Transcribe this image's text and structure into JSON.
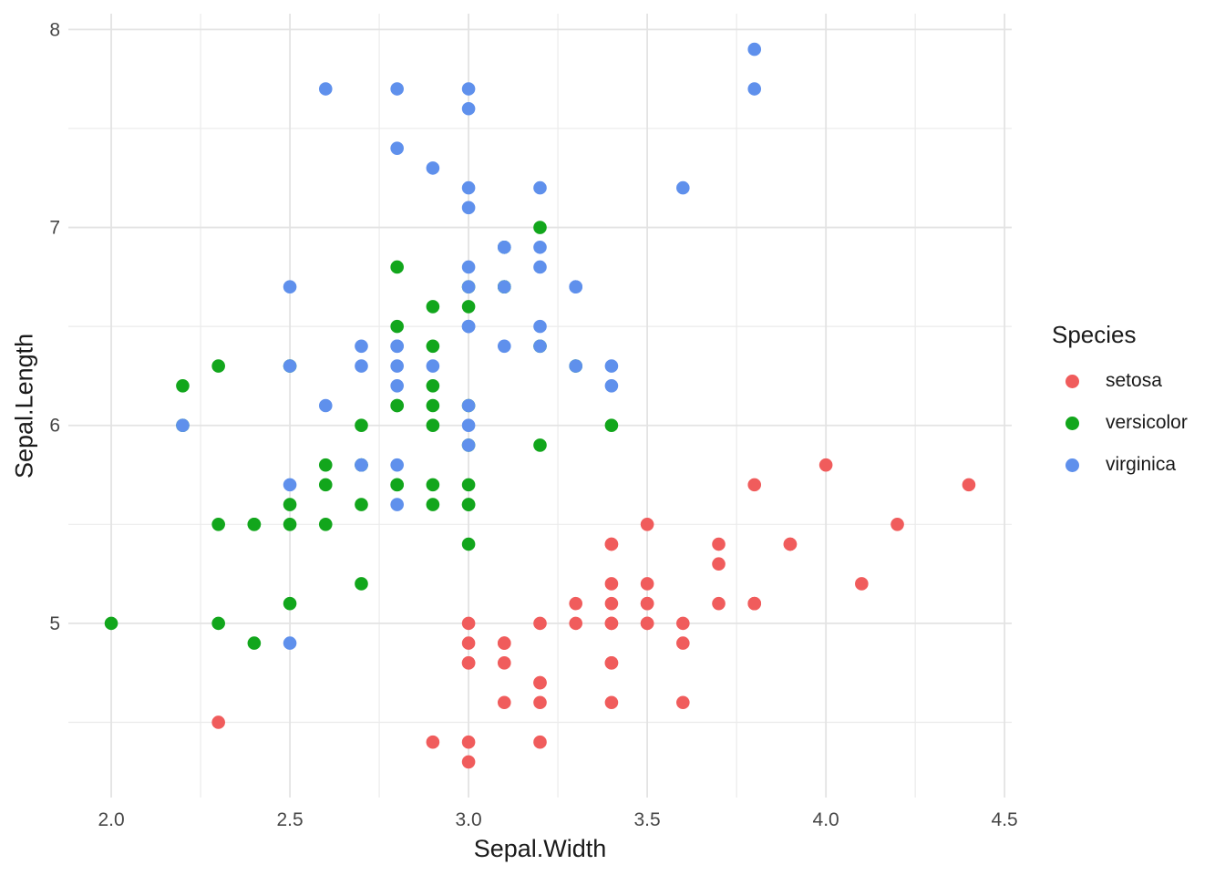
{
  "chart_data": {
    "type": "scatter",
    "title": "",
    "xlabel": "Sepal.Width",
    "ylabel": "Sepal.Length",
    "xlim": [
      1.88,
      4.52
    ],
    "ylim": [
      4.12,
      8.08
    ],
    "x_ticks": [
      2.0,
      2.5,
      3.0,
      3.5,
      4.0,
      4.5
    ],
    "x_tick_labels": [
      "2.0",
      "2.5",
      "3.0",
      "3.5",
      "4.0",
      "4.5"
    ],
    "x_minor_ticks": [
      2.25,
      2.75,
      3.25,
      3.75,
      4.25
    ],
    "y_ticks": [
      5,
      6,
      7,
      8
    ],
    "y_tick_labels": [
      "5",
      "6",
      "7",
      "8"
    ],
    "y_minor_ticks": [
      4.5,
      5.5,
      6.5,
      7.5
    ],
    "grid": "on",
    "grid_color": "#E3E3E3",
    "grid_minor_color": "#EBEBEB",
    "tick_label_color": "#474747",
    "axis_title_color": "#1A1A1A",
    "background": "#FFFFFF",
    "point_radius": 7.3,
    "legend": {
      "title": "Species",
      "position": "right"
    },
    "series": [
      {
        "name": "setosa",
        "color": "#F05C5C",
        "points": [
          [
            3.5,
            5.1
          ],
          [
            3.0,
            4.9
          ],
          [
            3.2,
            4.7
          ],
          [
            3.1,
            4.6
          ],
          [
            3.6,
            5.0
          ],
          [
            3.9,
            5.4
          ],
          [
            3.4,
            4.6
          ],
          [
            3.4,
            5.0
          ],
          [
            2.9,
            4.4
          ],
          [
            3.1,
            4.9
          ],
          [
            3.7,
            5.4
          ],
          [
            3.4,
            4.8
          ],
          [
            3.0,
            4.8
          ],
          [
            3.0,
            4.3
          ],
          [
            4.0,
            5.8
          ],
          [
            4.4,
            5.7
          ],
          [
            3.9,
            5.4
          ],
          [
            3.5,
            5.1
          ],
          [
            3.8,
            5.7
          ],
          [
            3.8,
            5.1
          ],
          [
            3.4,
            5.4
          ],
          [
            3.7,
            5.1
          ],
          [
            3.6,
            4.6
          ],
          [
            3.3,
            5.1
          ],
          [
            3.4,
            4.8
          ],
          [
            3.0,
            5.0
          ],
          [
            3.4,
            5.0
          ],
          [
            3.5,
            5.2
          ],
          [
            3.4,
            5.2
          ],
          [
            3.2,
            4.7
          ],
          [
            3.1,
            4.8
          ],
          [
            3.4,
            5.4
          ],
          [
            4.1,
            5.2
          ],
          [
            4.2,
            5.5
          ],
          [
            3.1,
            4.9
          ],
          [
            3.2,
            5.0
          ],
          [
            3.5,
            5.5
          ],
          [
            3.6,
            4.9
          ],
          [
            3.0,
            4.4
          ],
          [
            3.4,
            5.1
          ],
          [
            3.5,
            5.0
          ],
          [
            2.3,
            4.5
          ],
          [
            3.2,
            4.4
          ],
          [
            3.5,
            5.0
          ],
          [
            3.8,
            5.1
          ],
          [
            3.0,
            4.8
          ],
          [
            3.8,
            5.1
          ],
          [
            3.2,
            4.6
          ],
          [
            3.7,
            5.3
          ],
          [
            3.3,
            5.0
          ]
        ]
      },
      {
        "name": "versicolor",
        "color": "#12A61C",
        "points": [
          [
            3.2,
            7.0
          ],
          [
            3.2,
            6.4
          ],
          [
            3.1,
            6.9
          ],
          [
            2.3,
            5.5
          ],
          [
            2.8,
            6.5
          ],
          [
            2.8,
            5.7
          ],
          [
            3.3,
            6.3
          ],
          [
            2.4,
            4.9
          ],
          [
            2.9,
            6.6
          ],
          [
            2.7,
            5.2
          ],
          [
            2.0,
            5.0
          ],
          [
            3.0,
            5.9
          ],
          [
            2.2,
            6.0
          ],
          [
            2.9,
            6.1
          ],
          [
            2.9,
            5.6
          ],
          [
            3.1,
            6.7
          ],
          [
            3.0,
            5.6
          ],
          [
            2.7,
            5.8
          ],
          [
            2.2,
            6.2
          ],
          [
            2.5,
            5.6
          ],
          [
            3.2,
            5.9
          ],
          [
            2.8,
            6.1
          ],
          [
            2.5,
            6.3
          ],
          [
            2.8,
            6.1
          ],
          [
            2.9,
            6.4
          ],
          [
            3.0,
            6.6
          ],
          [
            2.8,
            6.8
          ],
          [
            3.0,
            6.7
          ],
          [
            2.9,
            6.0
          ],
          [
            2.6,
            5.7
          ],
          [
            2.4,
            5.5
          ],
          [
            2.4,
            5.5
          ],
          [
            2.7,
            5.8
          ],
          [
            2.7,
            6.0
          ],
          [
            3.0,
            5.4
          ],
          [
            3.4,
            6.0
          ],
          [
            3.1,
            6.7
          ],
          [
            2.3,
            6.3
          ],
          [
            3.0,
            5.6
          ],
          [
            2.5,
            5.5
          ],
          [
            2.6,
            5.5
          ],
          [
            3.0,
            6.1
          ],
          [
            2.6,
            5.8
          ],
          [
            2.3,
            5.0
          ],
          [
            2.7,
            5.6
          ],
          [
            3.0,
            5.7
          ],
          [
            2.9,
            5.7
          ],
          [
            2.9,
            6.2
          ],
          [
            2.5,
            5.1
          ],
          [
            2.8,
            5.7
          ]
        ]
      },
      {
        "name": "virginica",
        "color": "#5F90EC",
        "points": [
          [
            3.3,
            6.3
          ],
          [
            2.7,
            5.8
          ],
          [
            3.0,
            7.1
          ],
          [
            2.9,
            6.3
          ],
          [
            3.0,
            6.5
          ],
          [
            3.0,
            7.6
          ],
          [
            2.5,
            4.9
          ],
          [
            2.9,
            7.3
          ],
          [
            2.5,
            6.7
          ],
          [
            3.6,
            7.2
          ],
          [
            3.2,
            6.5
          ],
          [
            2.7,
            6.4
          ],
          [
            3.0,
            6.8
          ],
          [
            2.5,
            5.7
          ],
          [
            2.8,
            5.8
          ],
          [
            3.2,
            6.4
          ],
          [
            3.0,
            6.5
          ],
          [
            3.8,
            7.7
          ],
          [
            2.6,
            7.7
          ],
          [
            2.2,
            6.0
          ],
          [
            3.2,
            6.9
          ],
          [
            2.8,
            5.6
          ],
          [
            2.8,
            7.7
          ],
          [
            2.7,
            6.3
          ],
          [
            3.3,
            6.7
          ],
          [
            3.2,
            7.2
          ],
          [
            2.8,
            6.2
          ],
          [
            3.0,
            6.1
          ],
          [
            2.8,
            6.4
          ],
          [
            3.0,
            7.2
          ],
          [
            2.8,
            7.4
          ],
          [
            3.8,
            7.9
          ],
          [
            2.8,
            6.4
          ],
          [
            2.8,
            6.3
          ],
          [
            2.6,
            6.1
          ],
          [
            3.0,
            7.7
          ],
          [
            3.4,
            6.3
          ],
          [
            3.1,
            6.4
          ],
          [
            3.0,
            6.0
          ],
          [
            3.1,
            6.9
          ],
          [
            3.1,
            6.7
          ],
          [
            3.1,
            6.9
          ],
          [
            2.7,
            5.8
          ],
          [
            3.2,
            6.8
          ],
          [
            3.3,
            6.7
          ],
          [
            3.0,
            6.7
          ],
          [
            2.5,
            6.3
          ],
          [
            3.0,
            6.5
          ],
          [
            3.4,
            6.2
          ],
          [
            3.0,
            5.9
          ]
        ]
      }
    ]
  }
}
